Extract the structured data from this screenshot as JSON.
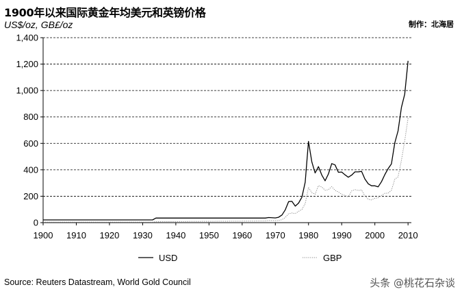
{
  "header": {
    "title": "1900年以来国际黄金年均美元和英镑价格",
    "units": "US$/oz, GB£/oz",
    "author": "制作：北海居"
  },
  "footer": {
    "source": "Source: Reuters Datastream, World Gold Council",
    "watermark": "头条 @桃花石杂谈"
  },
  "colors": {
    "usd": "#000000",
    "gbp": "#888888",
    "grid": "#000000"
  },
  "chart_data": {
    "type": "line",
    "title": "1900年以来国际黄金年均美元和英镑价格",
    "ylabel": "US$/oz, GB£/oz",
    "xlim": [
      1900,
      2011
    ],
    "ylim": [
      0,
      1400
    ],
    "x_ticks": [
      1900,
      1910,
      1920,
      1930,
      1940,
      1950,
      1960,
      1970,
      1980,
      1990,
      2000,
      2010
    ],
    "y_ticks": [
      0,
      200,
      400,
      600,
      800,
      1000,
      1200,
      1400
    ],
    "y_tick_labels": [
      "0",
      "200",
      "400",
      "600",
      "800",
      "1,000",
      "1,200",
      "1,400"
    ],
    "grid": "horizontal dashed",
    "legend_placement": "bottom",
    "series": [
      {
        "name": "USD",
        "style": "solid",
        "points": [
          [
            1900,
            20.7
          ],
          [
            1933,
            20.7
          ],
          [
            1934,
            35
          ],
          [
            1967,
            35
          ],
          [
            1968,
            39
          ],
          [
            1970,
            36
          ],
          [
            1971,
            41
          ],
          [
            1972,
            58
          ],
          [
            1973,
            97
          ],
          [
            1974,
            159
          ],
          [
            1975,
            161
          ],
          [
            1976,
            125
          ],
          [
            1977,
            148
          ],
          [
            1978,
            193
          ],
          [
            1979,
            306
          ],
          [
            1980,
            615
          ],
          [
            1981,
            460
          ],
          [
            1982,
            376
          ],
          [
            1983,
            424
          ],
          [
            1984,
            361
          ],
          [
            1985,
            317
          ],
          [
            1986,
            368
          ],
          [
            1987,
            447
          ],
          [
            1988,
            437
          ],
          [
            1989,
            381
          ],
          [
            1990,
            383
          ],
          [
            1991,
            362
          ],
          [
            1992,
            344
          ],
          [
            1993,
            360
          ],
          [
            1994,
            384
          ],
          [
            1995,
            384
          ],
          [
            1996,
            388
          ],
          [
            1997,
            331
          ],
          [
            1998,
            294
          ],
          [
            1999,
            279
          ],
          [
            2000,
            279
          ],
          [
            2001,
            271
          ],
          [
            2002,
            310
          ],
          [
            2003,
            363
          ],
          [
            2004,
            409
          ],
          [
            2005,
            445
          ],
          [
            2006,
            604
          ],
          [
            2007,
            695
          ],
          [
            2008,
            872
          ],
          [
            2009,
            972
          ],
          [
            2010,
            1225
          ]
        ]
      },
      {
        "name": "GBP",
        "style": "dotted",
        "points": [
          [
            1900,
            4.25
          ],
          [
            1933,
            4.25
          ],
          [
            1934,
            7
          ],
          [
            1967,
            12.5
          ],
          [
            1968,
            16
          ],
          [
            1970,
            15
          ],
          [
            1971,
            16.8
          ],
          [
            1972,
            23
          ],
          [
            1973,
            39
          ],
          [
            1974,
            68
          ],
          [
            1975,
            73
          ],
          [
            1976,
            69
          ],
          [
            1977,
            85
          ],
          [
            1978,
            100
          ],
          [
            1979,
            144
          ],
          [
            1980,
            265
          ],
          [
            1981,
            227
          ],
          [
            1982,
            215
          ],
          [
            1983,
            280
          ],
          [
            1984,
            270
          ],
          [
            1985,
            245
          ],
          [
            1986,
            250
          ],
          [
            1987,
            273
          ],
          [
            1988,
            245
          ],
          [
            1989,
            232
          ],
          [
            1990,
            215
          ],
          [
            1991,
            205
          ],
          [
            1992,
            195
          ],
          [
            1993,
            240
          ],
          [
            1994,
            250
          ],
          [
            1995,
            243
          ],
          [
            1996,
            248
          ],
          [
            1997,
            202
          ],
          [
            1998,
            177
          ],
          [
            1999,
            172
          ],
          [
            2000,
            184
          ],
          [
            2001,
            188
          ],
          [
            2002,
            206
          ],
          [
            2003,
            222
          ],
          [
            2004,
            223
          ],
          [
            2005,
            245
          ],
          [
            2006,
            328
          ],
          [
            2007,
            347
          ],
          [
            2008,
            472
          ],
          [
            2009,
            619
          ],
          [
            2010,
            792
          ]
        ]
      }
    ]
  }
}
